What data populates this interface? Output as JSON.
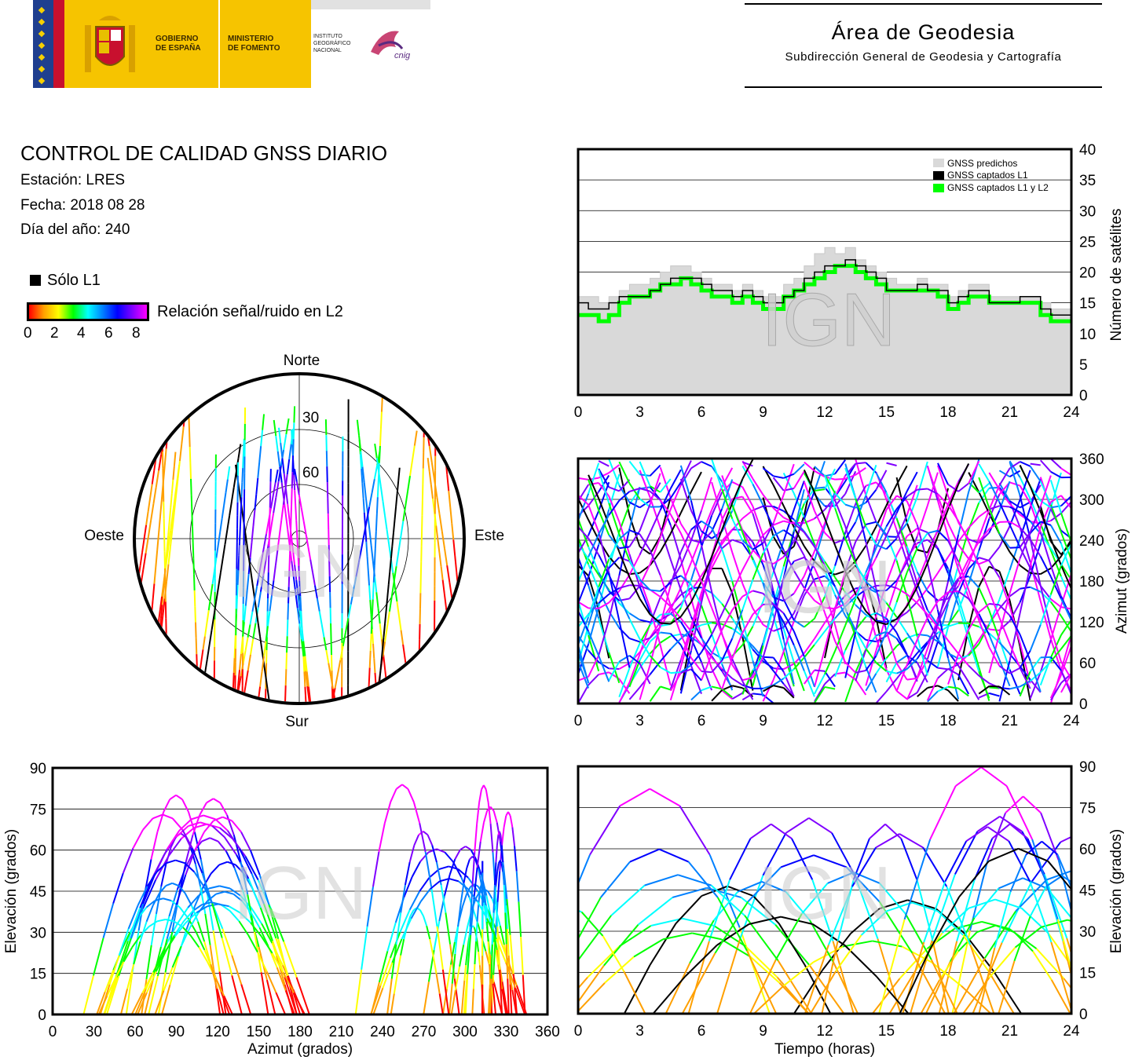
{
  "header": {
    "gobierno": "GOBIERNO\nDE ESPAÑA",
    "ministerio": "MINISTERIO\nDE FOMENTO",
    "instituto": "INSTITUTO\nGEOGRÁFICO\nNACIONAL",
    "cnig": "cnig",
    "area_title": "Área de Geodesia",
    "area_subtitle": "Subdirección General de Geodesia y Cartografía"
  },
  "report": {
    "title": "CONTROL DE CALIDAD GNSS DIARIO",
    "station": "Estación: LRES",
    "date": "Fecha: 2018 08 28",
    "doy": "Día del año: 240",
    "legend_l1": "Sólo L1",
    "colorbar_label": "Relación señal/ruido en L2",
    "colorbar_ticks": [
      "0",
      "2",
      "4",
      "6",
      "8"
    ]
  },
  "watermark": "IGN",
  "colors": {
    "predicted": "#d9d9d9",
    "l1": "#000000",
    "l1l2": "#00ff00"
  },
  "chart_data": [
    {
      "id": "satellite-count",
      "type": "area",
      "ylabel": "Número de satélites",
      "xlabel": "",
      "xlim": [
        0,
        24
      ],
      "ylim": [
        0,
        40
      ],
      "xticks": [
        0,
        3,
        6,
        9,
        12,
        15,
        18,
        21,
        24
      ],
      "yticks": [
        0,
        5,
        10,
        15,
        20,
        25,
        30,
        35,
        40
      ],
      "grid": "horizontal",
      "legend_position": "top-right",
      "legend": [
        "GNSS predichos",
        "GNSS captados L1",
        "GNSS captados L1 y L2"
      ],
      "x": [
        0,
        0.5,
        1,
        1.5,
        2,
        2.5,
        3,
        3.5,
        4,
        4.5,
        5,
        5.5,
        6,
        6.5,
        7,
        7.5,
        8,
        8.5,
        9,
        9.5,
        10,
        10.5,
        11,
        11.5,
        12,
        12.5,
        13,
        13.5,
        14,
        14.5,
        15,
        15.5,
        16,
        16.5,
        17,
        17.5,
        18,
        18.5,
        19,
        19.5,
        20,
        20.5,
        21,
        21.5,
        22,
        22.5,
        23,
        23.5,
        24
      ],
      "series": [
        {
          "name": "GNSS predichos",
          "values": [
            16,
            16,
            15,
            16,
            17,
            18,
            18,
            19,
            20,
            21,
            21,
            20,
            19,
            18,
            18,
            17,
            18,
            17,
            16,
            16,
            18,
            19,
            21,
            23,
            24,
            23,
            24,
            22,
            21,
            20,
            19,
            18,
            18,
            19,
            18,
            18,
            16,
            17,
            18,
            18,
            16,
            16,
            16,
            16,
            16,
            15,
            14,
            14,
            14
          ]
        },
        {
          "name": "GNSS captados L1",
          "values": [
            15,
            14,
            14,
            15,
            16,
            16,
            16,
            17,
            18,
            19,
            19,
            19,
            18,
            17,
            17,
            16,
            17,
            16,
            15,
            15,
            16,
            17,
            19,
            20,
            21,
            21,
            22,
            21,
            20,
            19,
            17,
            17,
            17,
            18,
            17,
            17,
            15,
            16,
            17,
            17,
            15,
            15,
            15,
            16,
            16,
            14,
            13,
            13,
            13
          ]
        },
        {
          "name": "GNSS captados L1 y L2",
          "values": [
            13,
            13,
            12,
            13,
            15,
            16,
            16,
            17,
            18,
            18,
            19,
            18,
            17,
            16,
            16,
            15,
            16,
            15,
            14,
            14,
            16,
            17,
            18,
            19,
            20,
            21,
            21,
            20,
            19,
            18,
            17,
            17,
            17,
            17,
            17,
            16,
            14,
            15,
            16,
            16,
            15,
            15,
            15,
            15,
            15,
            13,
            12,
            12,
            12
          ]
        }
      ]
    },
    {
      "id": "skyplot",
      "type": "scatter",
      "projection": "polar",
      "direction_labels": {
        "n": "Norte",
        "s": "Sur",
        "e": "Este",
        "w": "Oeste"
      },
      "elevation_rings": [
        "30",
        "60"
      ]
    },
    {
      "id": "azimuth-time",
      "type": "scatter",
      "ylabel": "Azimut (grados)",
      "xlabel": "",
      "xlim": [
        0,
        24
      ],
      "ylim": [
        0,
        360
      ],
      "xticks": [
        0,
        3,
        6,
        9,
        12,
        15,
        18,
        21,
        24
      ],
      "yticks": [
        0,
        60,
        120,
        180,
        240,
        300,
        360
      ]
    },
    {
      "id": "elevation-azimuth",
      "type": "scatter",
      "ylabel": "Elevación (grados)",
      "xlabel": "Azimut (grados)",
      "xlim": [
        0,
        360
      ],
      "ylim": [
        0,
        90
      ],
      "xticks": [
        0,
        30,
        60,
        90,
        120,
        150,
        180,
        210,
        240,
        270,
        300,
        330,
        360
      ],
      "yticks": [
        0,
        15,
        30,
        45,
        60,
        75,
        90
      ]
    },
    {
      "id": "elevation-time",
      "type": "scatter",
      "ylabel": "Elevación (grados)",
      "xlabel": "Tiempo (horas)",
      "xlim": [
        0,
        24
      ],
      "ylim": [
        0,
        90
      ],
      "xticks": [
        0,
        3,
        6,
        9,
        12,
        15,
        18,
        21,
        24
      ],
      "yticks": [
        0,
        15,
        30,
        45,
        60,
        75,
        90
      ]
    }
  ]
}
